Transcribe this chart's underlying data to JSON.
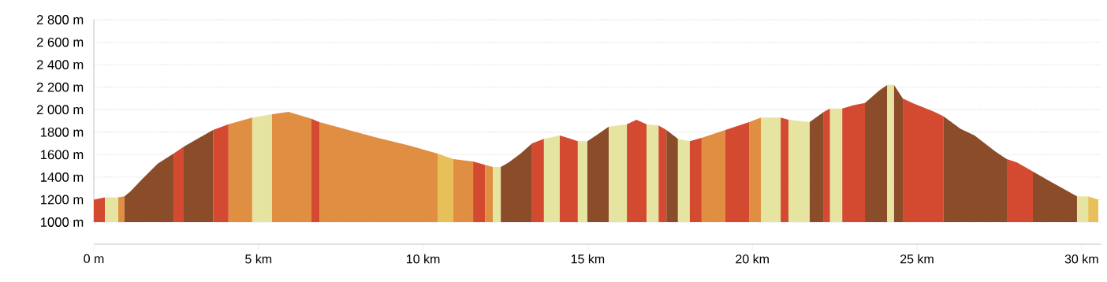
{
  "chart_data": {
    "type": "area",
    "xlim": [
      0,
      30.6
    ],
    "ylim": [
      1000,
      2800
    ],
    "grid": "y",
    "xticks": [
      {
        "value": 0,
        "label": "0 m"
      },
      {
        "value": 5,
        "label": "5 km"
      },
      {
        "value": 10,
        "label": "10 km"
      },
      {
        "value": 15,
        "label": "15 km"
      },
      {
        "value": 20,
        "label": "20 km"
      },
      {
        "value": 25,
        "label": "25 km"
      },
      {
        "value": 30,
        "label": "30 km"
      }
    ],
    "yticks": [
      {
        "value": 1000,
        "label": "1000 m"
      },
      {
        "value": 1200,
        "label": "1200 m"
      },
      {
        "value": 1400,
        "label": "1400 m"
      },
      {
        "value": 1600,
        "label": "1600 m"
      },
      {
        "value": 1800,
        "label": "1800 m"
      },
      {
        "value": 2000,
        "label": "2 000 m"
      },
      {
        "value": 2200,
        "label": "2 200 m"
      },
      {
        "value": 2400,
        "label": "2 400 m"
      },
      {
        "value": 2600,
        "label": "2 600 m"
      },
      {
        "value": 2800,
        "label": "2 800 m"
      }
    ],
    "series": [
      {
        "color": "#d44a30",
        "x": [
          0,
          0.34
        ],
        "values": [
          1200,
          1220
        ]
      },
      {
        "color": "#e6e4a1",
        "x": [
          0.34,
          0.74
        ],
        "values": [
          1220,
          1220
        ]
      },
      {
        "color": "#e08f42",
        "x": [
          0.74,
          0.93
        ],
        "values": [
          1220,
          1230
        ]
      },
      {
        "color": "#8b4c2a",
        "x": [
          0.93,
          1.1,
          1.46,
          1.94,
          2.42
        ],
        "values": [
          1230,
          1270,
          1380,
          1520,
          1610
        ]
      },
      {
        "color": "#d44a30",
        "x": [
          2.42,
          2.73
        ],
        "values": [
          1610,
          1670
        ]
      },
      {
        "color": "#8b4c2a",
        "x": [
          2.73,
          3.62
        ],
        "values": [
          1670,
          1820
        ]
      },
      {
        "color": "#d44a30",
        "x": [
          3.62,
          4.09
        ],
        "values": [
          1820,
          1870
        ]
      },
      {
        "color": "#e08f42",
        "x": [
          4.09,
          4.81
        ],
        "values": [
          1870,
          1930
        ]
      },
      {
        "color": "#e6e4a1",
        "x": [
          4.81,
          5.41
        ],
        "values": [
          1930,
          1960
        ]
      },
      {
        "color": "#e08f42",
        "x": [
          5.41,
          5.91,
          6.61
        ],
        "values": [
          1960,
          1980,
          1920
        ]
      },
      {
        "color": "#d44a30",
        "x": [
          6.61,
          6.85
        ],
        "values": [
          1920,
          1890
        ]
      },
      {
        "color": "#e08f42",
        "x": [
          6.85,
          8.62,
          9.6,
          10.44
        ],
        "values": [
          1890,
          1750,
          1680,
          1610
        ]
      },
      {
        "color": "#e8c05a",
        "x": [
          10.44,
          10.92
        ],
        "values": [
          1610,
          1560
        ]
      },
      {
        "color": "#e08f42",
        "x": [
          10.92,
          11.52
        ],
        "values": [
          1560,
          1540
        ]
      },
      {
        "color": "#d44a30",
        "x": [
          11.52,
          11.88
        ],
        "values": [
          1540,
          1510
        ]
      },
      {
        "color": "#e08f42",
        "x": [
          11.88,
          12.12
        ],
        "values": [
          1510,
          1490
        ]
      },
      {
        "color": "#e6e4a1",
        "x": [
          12.12,
          12.36
        ],
        "values": [
          1490,
          1490
        ]
      },
      {
        "color": "#8b4c2a",
        "x": [
          12.36,
          12.6,
          12.96,
          13.31
        ],
        "values": [
          1490,
          1530,
          1610,
          1700
        ]
      },
      {
        "color": "#d44a30",
        "x": [
          13.31,
          13.67
        ],
        "values": [
          1700,
          1740
        ]
      },
      {
        "color": "#e6e4a1",
        "x": [
          13.67,
          14.15
        ],
        "values": [
          1740,
          1770
        ]
      },
      {
        "color": "#d44a30",
        "x": [
          14.15,
          14.39,
          14.7
        ],
        "values": [
          1770,
          1750,
          1720
        ]
      },
      {
        "color": "#e6e4a1",
        "x": [
          14.7,
          14.99
        ],
        "values": [
          1720,
          1720
        ]
      },
      {
        "color": "#8b4c2a",
        "x": [
          14.99,
          15.35,
          15.64
        ],
        "values": [
          1720,
          1790,
          1850
        ]
      },
      {
        "color": "#e6e4a1",
        "x": [
          15.64,
          16.19
        ],
        "values": [
          1850,
          1870
        ]
      },
      {
        "color": "#d44a30",
        "x": [
          16.19,
          16.48,
          16.79
        ],
        "values": [
          1870,
          1910,
          1870
        ]
      },
      {
        "color": "#e6e4a1",
        "x": [
          16.79,
          17.15
        ],
        "values": [
          1870,
          1860
        ]
      },
      {
        "color": "#d44a30",
        "x": [
          17.15,
          17.39
        ],
        "values": [
          1860,
          1820
        ]
      },
      {
        "color": "#8b4c2a",
        "x": [
          17.39,
          17.74
        ],
        "values": [
          1820,
          1740
        ]
      },
      {
        "color": "#e6e4a1",
        "x": [
          17.74,
          18.1
        ],
        "values": [
          1740,
          1720
        ]
      },
      {
        "color": "#d44a30",
        "x": [
          18.1,
          18.46
        ],
        "values": [
          1720,
          1750
        ]
      },
      {
        "color": "#e08f42",
        "x": [
          18.46,
          19.18
        ],
        "values": [
          1750,
          1820
        ]
      },
      {
        "color": "#d44a30",
        "x": [
          19.18,
          19.9
        ],
        "values": [
          1820,
          1890
        ]
      },
      {
        "color": "#e08f42",
        "x": [
          19.9,
          20.26
        ],
        "values": [
          1890,
          1930
        ]
      },
      {
        "color": "#e6e4a1",
        "x": [
          20.26,
          20.86
        ],
        "values": [
          1930,
          1930
        ]
      },
      {
        "color": "#d44a30",
        "x": [
          20.86,
          21.1
        ],
        "values": [
          1930,
          1910
        ]
      },
      {
        "color": "#e6e4a1",
        "x": [
          21.1,
          21.74
        ],
        "values": [
          1910,
          1890
        ]
      },
      {
        "color": "#8b4c2a",
        "x": [
          21.74,
          22.17
        ],
        "values": [
          1890,
          1980
        ]
      },
      {
        "color": "#d44a30",
        "x": [
          22.17,
          22.36
        ],
        "values": [
          1980,
          2010
        ]
      },
      {
        "color": "#e6e4a1",
        "x": [
          22.36,
          22.73
        ],
        "values": [
          2010,
          2010
        ]
      },
      {
        "color": "#d44a30",
        "x": [
          22.73,
          23.08,
          23.42
        ],
        "values": [
          2010,
          2040,
          2060
        ]
      },
      {
        "color": "#8b4c2a",
        "x": [
          23.42,
          23.85,
          24.1
        ],
        "values": [
          2060,
          2170,
          2220
        ]
      },
      {
        "color": "#e6e4a1",
        "x": [
          24.1,
          24.3
        ],
        "values": [
          2220,
          2220
        ]
      },
      {
        "color": "#8b4c2a",
        "x": [
          24.3,
          24.57
        ],
        "values": [
          2220,
          2100
        ]
      },
      {
        "color": "#d44a30",
        "x": [
          24.57,
          24.86,
          25.53,
          25.81
        ],
        "values": [
          2100,
          2060,
          1980,
          1940
        ]
      },
      {
        "color": "#8b4c2a",
        "x": [
          25.81,
          26.32,
          26.75,
          27.37,
          27.73
        ],
        "values": [
          1940,
          1830,
          1770,
          1630,
          1560
        ]
      },
      {
        "color": "#d44a30",
        "x": [
          27.73,
          28.04,
          28.52
        ],
        "values": [
          1560,
          1530,
          1450
        ]
      },
      {
        "color": "#8b4c2a",
        "x": [
          28.52,
          29.0,
          29.86
        ],
        "values": [
          1450,
          1370,
          1230
        ]
      },
      {
        "color": "#e6e4a1",
        "x": [
          29.86,
          30.2
        ],
        "values": [
          1230,
          1230
        ]
      },
      {
        "color": "#e8c05a",
        "x": [
          30.2,
          30.51
        ],
        "values": [
          1230,
          1200
        ]
      }
    ]
  }
}
